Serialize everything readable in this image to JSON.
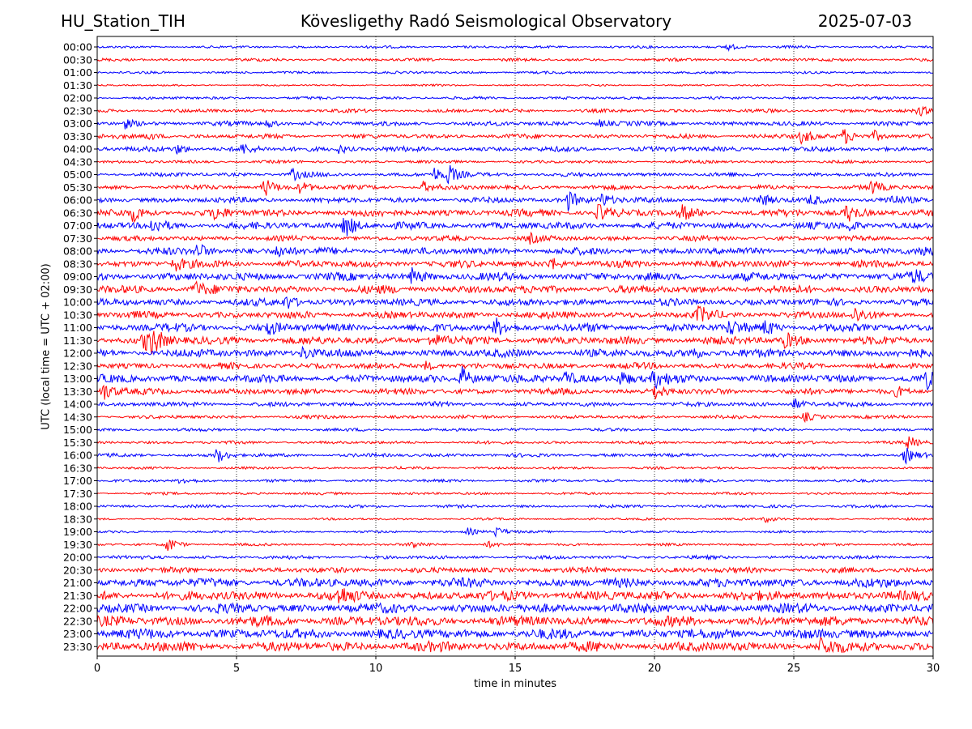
{
  "header": {
    "station": "HU_Station_TIH",
    "observatory": "Kövesligethy Radó Seismological Observatory",
    "date": "2025-07-03"
  },
  "chart_data": {
    "type": "line",
    "title": "Kövesligethy Radó Seismological Observatory",
    "xlabel": "time in minutes",
    "ylabel": "UTC (local time = UTC + 02:00)",
    "xlim": [
      0,
      30
    ],
    "xticks": [
      0,
      5,
      10,
      15,
      20,
      25,
      30
    ],
    "grid": "vertical dotted lines at 5-minute ticks",
    "row_colors": [
      "#0000ff",
      "#ff0000"
    ],
    "rows": [
      {
        "label": "00:00",
        "amplitude": 0.25,
        "events": [
          [
            22.6,
            0.5
          ]
        ]
      },
      {
        "label": "00:30",
        "amplitude": 0.3,
        "events": []
      },
      {
        "label": "01:00",
        "amplitude": 0.25,
        "events": []
      },
      {
        "label": "01:30",
        "amplitude": 0.18,
        "events": []
      },
      {
        "label": "02:00",
        "amplitude": 0.28,
        "events": []
      },
      {
        "label": "02:30",
        "amplitude": 0.35,
        "events": [
          [
            29.5,
            0.6
          ]
        ]
      },
      {
        "label": "03:00",
        "amplitude": 0.45,
        "events": [
          [
            1.0,
            0.6
          ],
          [
            6.1,
            0.6
          ],
          [
            18.0,
            0.5
          ]
        ]
      },
      {
        "label": "03:30",
        "amplitude": 0.45,
        "events": [
          [
            1.8,
            0.6
          ],
          [
            25.3,
            1.0
          ],
          [
            26.8,
            1.0
          ],
          [
            27.9,
            0.7
          ]
        ]
      },
      {
        "label": "04:00",
        "amplitude": 0.5,
        "events": [
          [
            2.9,
            0.7
          ],
          [
            5.2,
            0.6
          ],
          [
            8.7,
            0.6
          ]
        ]
      },
      {
        "label": "04:30",
        "amplitude": 0.3,
        "events": []
      },
      {
        "label": "05:00",
        "amplitude": 0.4,
        "events": [
          [
            7.0,
            0.8
          ],
          [
            12.6,
            1.2
          ],
          [
            12.1,
            0.9
          ]
        ]
      },
      {
        "label": "05:30",
        "amplitude": 0.45,
        "events": [
          [
            6.0,
            1.3
          ],
          [
            7.3,
            0.8
          ],
          [
            11.7,
            0.7
          ],
          [
            27.8,
            0.9
          ]
        ]
      },
      {
        "label": "06:00",
        "amplitude": 0.55,
        "events": [
          [
            16.9,
            1.3
          ],
          [
            18.1,
            1.0
          ],
          [
            23.8,
            0.8
          ],
          [
            25.6,
            0.6
          ],
          [
            28.4,
            0.6
          ]
        ]
      },
      {
        "label": "06:30",
        "amplitude": 0.7,
        "events": [
          [
            1.3,
            1.0
          ],
          [
            4.2,
            0.8
          ],
          [
            18.0,
            1.1
          ],
          [
            21.0,
            0.9
          ],
          [
            26.9,
            1.2
          ]
        ]
      },
      {
        "label": "07:00",
        "amplitude": 0.7,
        "events": [
          [
            8.9,
            1.8
          ],
          [
            2.0,
            0.9
          ],
          [
            27.0,
            0.7
          ]
        ]
      },
      {
        "label": "07:30",
        "amplitude": 0.5,
        "events": [
          [
            15.5,
            0.6
          ]
        ]
      },
      {
        "label": "08:00",
        "amplitude": 0.7,
        "events": [
          [
            3.6,
            1.1
          ],
          [
            6.5,
            0.9
          ],
          [
            29.6,
            0.9
          ]
        ]
      },
      {
        "label": "08:30",
        "amplitude": 0.7,
        "events": [
          [
            2.8,
            0.9
          ],
          [
            16.3,
            0.7
          ]
        ]
      },
      {
        "label": "09:00",
        "amplitude": 0.8,
        "events": [
          [
            11.3,
            0.9
          ],
          [
            29.3,
            0.7
          ]
        ]
      },
      {
        "label": "09:30",
        "amplitude": 0.8,
        "events": [
          [
            3.5,
            1.0
          ]
        ]
      },
      {
        "label": "10:00",
        "amplitude": 0.7,
        "events": [
          [
            6.8,
            0.9
          ]
        ]
      },
      {
        "label": "10:30",
        "amplitude": 0.7,
        "events": [
          [
            21.6,
            1.0
          ],
          [
            27.2,
            0.9
          ]
        ]
      },
      {
        "label": "11:00",
        "amplitude": 0.8,
        "events": [
          [
            6.1,
            0.9
          ],
          [
            14.3,
            1.1
          ],
          [
            22.7,
            0.9
          ],
          [
            24.0,
            1.0
          ]
        ]
      },
      {
        "label": "11:30",
        "amplitude": 0.8,
        "events": [
          [
            2.0,
            1.4
          ],
          [
            1.7,
            1.2
          ],
          [
            12.0,
            0.9
          ],
          [
            24.7,
            0.9
          ]
        ]
      },
      {
        "label": "12:00",
        "amplitude": 0.8,
        "events": [
          [
            7.4,
            0.9
          ],
          [
            21.3,
            0.9
          ]
        ]
      },
      {
        "label": "12:30",
        "amplitude": 0.6,
        "events": [
          [
            11.8,
            0.6
          ]
        ]
      },
      {
        "label": "13:00",
        "amplitude": 0.8,
        "events": [
          [
            13.1,
            1.5
          ],
          [
            16.8,
            1.0
          ],
          [
            18.8,
            1.0
          ],
          [
            20.0,
            1.1
          ],
          [
            29.8,
            0.9
          ]
        ]
      },
      {
        "label": "13:30",
        "amplitude": 0.6,
        "events": [
          [
            0.2,
            1.3
          ],
          [
            20.0,
            0.9
          ],
          [
            28.7,
            0.7
          ]
        ]
      },
      {
        "label": "14:00",
        "amplitude": 0.45,
        "events": [
          [
            25.0,
            0.8
          ]
        ]
      },
      {
        "label": "14:30",
        "amplitude": 0.35,
        "events": [
          [
            25.4,
            0.6
          ]
        ]
      },
      {
        "label": "15:00",
        "amplitude": 0.3,
        "events": []
      },
      {
        "label": "15:30",
        "amplitude": 0.3,
        "events": [
          [
            29.1,
            0.8
          ]
        ]
      },
      {
        "label": "16:00",
        "amplitude": 0.35,
        "events": [
          [
            4.3,
            1.0
          ],
          [
            29.0,
            1.1
          ]
        ]
      },
      {
        "label": "16:30",
        "amplitude": 0.25,
        "events": []
      },
      {
        "label": "17:00",
        "amplitude": 0.28,
        "events": [
          [
            3.0,
            0.4
          ]
        ]
      },
      {
        "label": "17:30",
        "amplitude": 0.25,
        "events": []
      },
      {
        "label": "18:00",
        "amplitude": 0.3,
        "events": []
      },
      {
        "label": "18:30",
        "amplitude": 0.22,
        "events": [
          [
            24.0,
            0.4
          ]
        ]
      },
      {
        "label": "19:00",
        "amplitude": 0.22,
        "events": [
          [
            13.3,
            0.5
          ],
          [
            14.3,
            0.7
          ]
        ]
      },
      {
        "label": "19:30",
        "amplitude": 0.25,
        "events": [
          [
            2.5,
            1.1
          ],
          [
            11.3,
            0.5
          ],
          [
            14.0,
            0.4
          ]
        ]
      },
      {
        "label": "20:00",
        "amplitude": 0.35,
        "events": []
      },
      {
        "label": "20:30",
        "amplitude": 0.55,
        "events": []
      },
      {
        "label": "21:00",
        "amplitude": 0.9,
        "events": []
      },
      {
        "label": "21:30",
        "amplitude": 0.95,
        "events": [
          [
            8.7,
            0.9
          ]
        ]
      },
      {
        "label": "22:00",
        "amplitude": 0.95,
        "events": []
      },
      {
        "label": "22:30",
        "amplitude": 1.0,
        "events": []
      },
      {
        "label": "23:00",
        "amplitude": 1.0,
        "events": []
      },
      {
        "label": "23:30",
        "amplitude": 1.0,
        "events": [
          [
            26.0,
            1.0
          ]
        ]
      }
    ]
  }
}
